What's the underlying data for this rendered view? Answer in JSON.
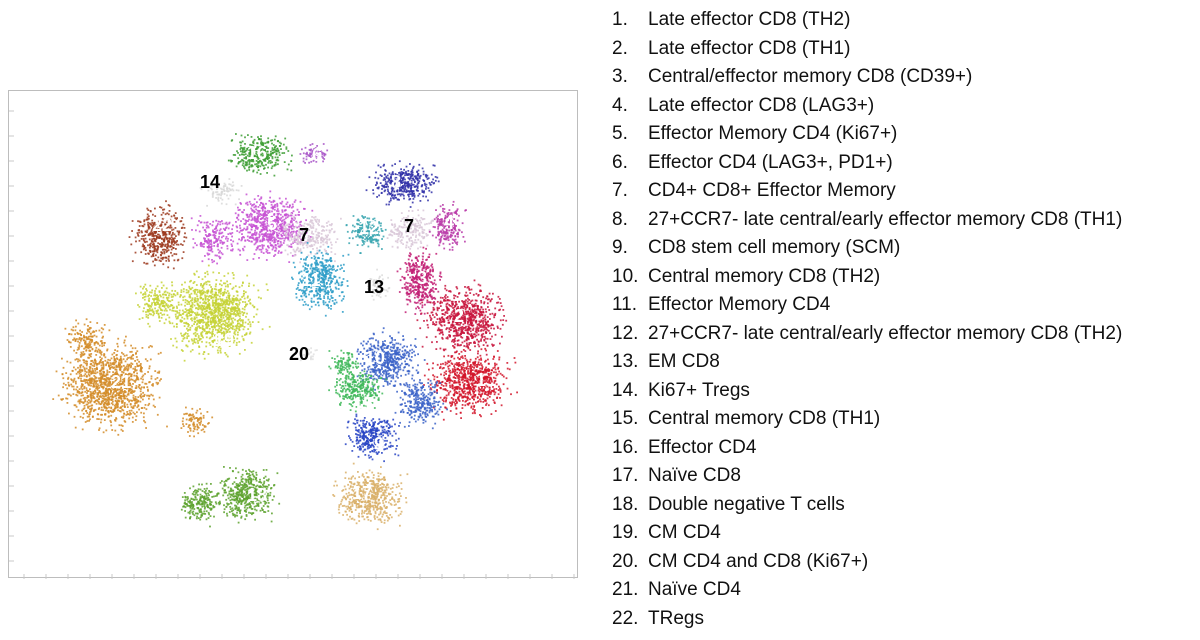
{
  "chart_data": {
    "type": "scatter",
    "title": "",
    "xlabel": "",
    "ylabel": "",
    "grid": false,
    "axis_tick_labels": false,
    "legend_placement": "right",
    "clusters": [
      {
        "id": "1",
        "name": "Late effector CD8 (TH2)",
        "color": "#d2152a"
      },
      {
        "id": "2",
        "name": "Late effector CD8 (TH1)",
        "color": "#c8143c"
      },
      {
        "id": "3",
        "name": "Central/effector memory CD8 (CD39+)",
        "color": "#c21e74"
      },
      {
        "id": "4",
        "name": "Late effector CD8 (LAG3+)",
        "color": "#b83aa8"
      },
      {
        "id": "5",
        "name": "Effector Memory CD4 (Ki67+)",
        "color": "#c752d4"
      },
      {
        "id": "6",
        "name": "Effector CD4 (LAG3+, PD1+)",
        "color": "#a855c8"
      },
      {
        "id": "7",
        "name": "CD4+ CD8+ Effector Memory",
        "color": "#d9c8d8"
      },
      {
        "id": "8",
        "name": "27+CCR7- late central/early effector memory CD8 (TH1)",
        "color": "#3030a8"
      },
      {
        "id": "9",
        "name": "CD8 stem cell memory (SCM)",
        "color": "#2844c4"
      },
      {
        "id": "10",
        "name": "Central memory CD8 (TH2)",
        "color": "#3a62c8"
      },
      {
        "id": "11",
        "name": "Effector Memory CD4",
        "color": "#2e9ec8"
      },
      {
        "id": "12",
        "name": "27+CCR7- late central/early effector memory CD8 (TH2)",
        "color": "#3aa6b0"
      },
      {
        "id": "13",
        "name": "EM CD8",
        "color": "#dcdcdc"
      },
      {
        "id": "14",
        "name": "Ki67+ Tregs",
        "color": "#d8d8d8"
      },
      {
        "id": "15",
        "name": "Central memory CD8 (TH1)",
        "color": "#3fb85a"
      },
      {
        "id": "16",
        "name": "Effector CD4",
        "color": "#3d9e34"
      },
      {
        "id": "17",
        "name": "Naïve CD8",
        "color": "#d9b06a"
      },
      {
        "id": "18",
        "name": "Double negative T cells",
        "color": "#5da22e"
      },
      {
        "id": "19",
        "name": "CM CD4",
        "color": "#c6d236"
      },
      {
        "id": "20",
        "name": "CM CD4 and CD8 (Ki67+)",
        "color": "#e0e0e0"
      },
      {
        "id": "21",
        "name": "Naïve CD4",
        "color": "#d48c28"
      },
      {
        "id": "22",
        "name": "TRegs",
        "color": "#9c3a1e"
      }
    ]
  },
  "legend": {
    "items": [
      {
        "num": "1.",
        "label": "Late effector CD8 (TH2)"
      },
      {
        "num": "2.",
        "label": "Late effector CD8 (TH1)"
      },
      {
        "num": "3.",
        "label": "Central/effector memory CD8 (CD39+)"
      },
      {
        "num": "4.",
        "label": "Late effector CD8 (LAG3+)"
      },
      {
        "num": "5.",
        "label": "Effector Memory CD4 (Ki67+)"
      },
      {
        "num": "6.",
        "label": "Effector CD4 (LAG3+, PD1+)"
      },
      {
        "num": "7.",
        "label": "CD4+ CD8+ Effector Memory"
      },
      {
        "num": "8.",
        "label": "27+CCR7- late central/early effector memory CD8 (TH1)"
      },
      {
        "num": "9.",
        "label": "CD8 stem cell memory (SCM)"
      },
      {
        "num": "10.",
        "label": "Central memory CD8 (TH2)"
      },
      {
        "num": "11.",
        "label": "Effector Memory CD4"
      },
      {
        "num": "12.",
        "label": "27+CCR7- late central/early effector memory CD8 (TH2)"
      },
      {
        "num": "13.",
        "label": "EM CD8"
      },
      {
        "num": "14.",
        "label": "Ki67+ Tregs"
      },
      {
        "num": "15.",
        "label": "Central memory CD8 (TH1)"
      },
      {
        "num": "16.",
        "label": "Effector CD4"
      },
      {
        "num": "17.",
        "label": "Naïve CD8"
      },
      {
        "num": "18.",
        "label": "Double negative T cells"
      },
      {
        "num": "19.",
        "label": "CM CD4"
      },
      {
        "num": "20.",
        "label": "CM CD4 and CD8 (Ki67+)"
      },
      {
        "num": "21.",
        "label": "Naïve CD4"
      },
      {
        "num": "22.",
        "label": "TRegs"
      }
    ]
  }
}
